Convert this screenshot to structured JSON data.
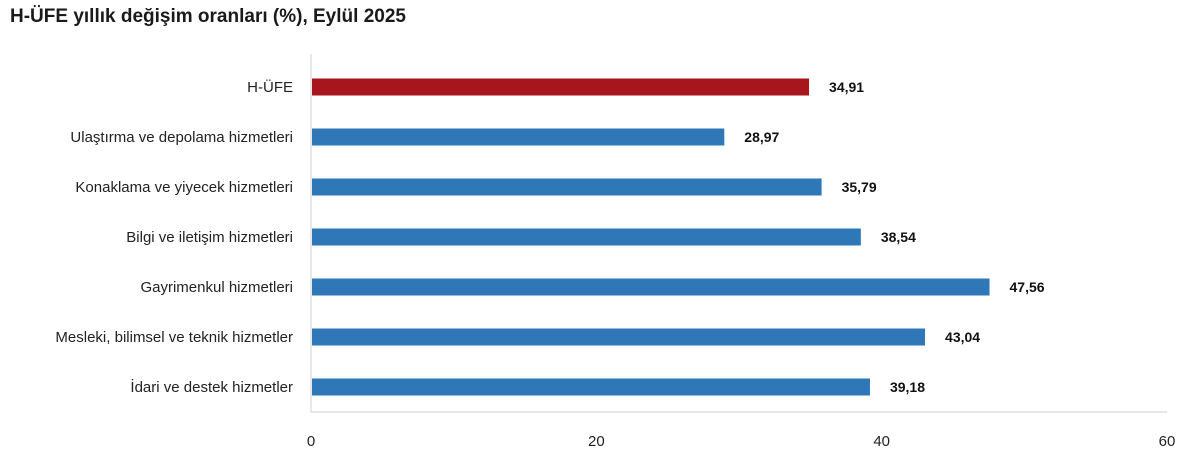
{
  "title": "H-ÜFE yıllık değişim oranları (%), Eylül 2025",
  "colors": {
    "highlight": "#A6161C",
    "bar": "#2E78B8",
    "axis": "#D0D0D0"
  },
  "chart_data": {
    "type": "bar",
    "orientation": "horizontal",
    "categories": [
      "H-ÜFE",
      "Ulaştırma ve depolama hizmetleri",
      "Konaklama ve yiyecek hizmetleri",
      "Bilgi ve iletişim hizmetleri",
      "Gayrimenkul hizmetleri",
      "Mesleki, bilimsel ve teknik hizmetler",
      "İdari ve destek hizmetler"
    ],
    "values": [
      34.91,
      28.97,
      35.79,
      38.54,
      47.56,
      43.04,
      39.18
    ],
    "value_labels": [
      "34,91",
      "28,97",
      "35,79",
      "38,54",
      "47,56",
      "43,04",
      "39,18"
    ],
    "highlight_index": 0,
    "xlim": [
      0,
      60
    ],
    "xticks": [
      0,
      20,
      40,
      60
    ],
    "grid": false
  }
}
